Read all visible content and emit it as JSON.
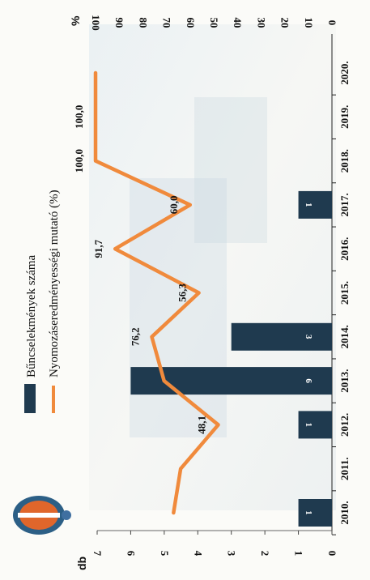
{
  "chart_data": {
    "type": "bar",
    "orientation": "rotated 90° clockwise on the scanned page",
    "categories": [
      "2010.",
      "2011.",
      "2012.",
      "2013.",
      "2014.",
      "2015.",
      "2016.",
      "2017.",
      "2018.",
      "2019.",
      "2020."
    ],
    "left_axis_label": "db",
    "right_axis_label": "%",
    "left_ylim": [
      0,
      7
    ],
    "right_ylim": [
      0,
      100
    ],
    "left_ticks": [
      "0",
      "1",
      "2",
      "3",
      "4",
      "5",
      "6",
      "7"
    ],
    "right_ticks": [
      "0",
      "10",
      "20",
      "30",
      "40",
      "50",
      "60",
      "70",
      "80",
      "90",
      "100"
    ],
    "series": [
      {
        "name": "Bűncselekmények száma",
        "type": "bar",
        "axis": "left",
        "color": "#1f3a4f",
        "values": [
          1,
          0,
          1,
          6,
          3,
          0,
          0,
          1,
          0,
          0,
          0
        ],
        "labels": [
          "1",
          "",
          "1",
          "6",
          "3",
          "",
          "",
          "1",
          "",
          "",
          ""
        ]
      },
      {
        "name": "Nyomozáseredményességi mutató (%)",
        "type": "line",
        "axis": "right",
        "color": "#f08a3c",
        "values": [
          67,
          64,
          48.1,
          71,
          76.2,
          56.3,
          91.7,
          60.0,
          100.0,
          100.0,
          100.0
        ],
        "labels": [
          "",
          "",
          "48,1",
          "",
          "76,2",
          "56,3",
          "91,7",
          "60,0",
          "100,0",
          "100,0",
          ""
        ]
      }
    ],
    "grid": false,
    "legend_position": "top"
  },
  "logo": {
    "name": "coat-of-arms-logo"
  }
}
